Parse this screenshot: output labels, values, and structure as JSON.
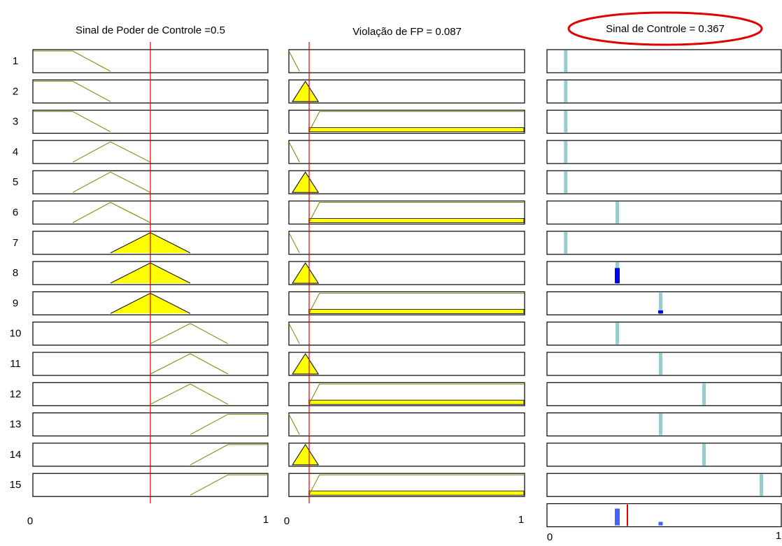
{
  "columns": [
    {
      "title": "Sinal de Poder de Controle =0.5",
      "axis_min": 0,
      "axis_max": 1
    },
    {
      "title": "Violação de FP = 0.087",
      "axis_min": 0,
      "axis_max": 1
    },
    {
      "title": "Sinal de Controle = 0.367",
      "axis_min": 0,
      "axis_max": 1
    }
  ],
  "rows": [
    1,
    2,
    3,
    4,
    5,
    6,
    7,
    8,
    9,
    10,
    11,
    12,
    13,
    14,
    15
  ]
}
